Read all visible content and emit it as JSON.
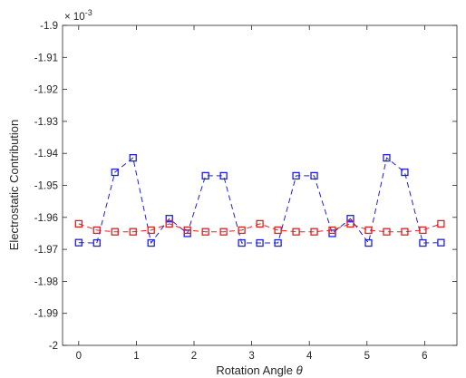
{
  "chart_data": {
    "type": "line",
    "title": "",
    "xlabel": "Rotation Angle",
    "xlabel_symbol": "θ",
    "ylabel": "Electrostatic Contribution",
    "y_exponent_base": "× 10",
    "y_exponent_power": "-3",
    "xlim": [
      -0.28,
      6.56
    ],
    "ylim": [
      -2.0,
      -1.9
    ],
    "x_ticks": [
      0,
      1,
      2,
      3,
      4,
      5,
      6
    ],
    "x_tick_labels": [
      "0",
      "1",
      "2",
      "3",
      "4",
      "5",
      "6"
    ],
    "y_ticks": [
      -1.9,
      -1.91,
      -1.92,
      -1.93,
      -1.94,
      -1.95,
      -1.96,
      -1.97,
      -1.98,
      -1.99,
      -2.0
    ],
    "y_tick_labels": [
      "-1.9",
      "-1.91",
      "-1.92",
      "-1.93",
      "-1.94",
      "-1.95",
      "-1.96",
      "-1.97",
      "-1.98",
      "-1.99",
      "-2"
    ],
    "grid": false,
    "legend": "none",
    "x": [
      0,
      0.3142,
      0.6283,
      0.9425,
      1.2566,
      1.5708,
      1.885,
      2.1991,
      2.5133,
      2.8274,
      3.1416,
      3.4558,
      3.7699,
      4.0841,
      4.3982,
      4.7124,
      5.0265,
      5.3407,
      5.6549,
      5.969,
      6.2832
    ],
    "series": [
      {
        "color": "#1f1fe0",
        "marker": "square",
        "line": "dashed",
        "values": [
          -1.9679,
          -1.968,
          -1.9459,
          -1.9414,
          -1.968,
          -1.9604,
          -1.965,
          -1.947,
          -1.947,
          -1.968,
          -1.968,
          -1.968,
          -1.947,
          -1.947,
          -1.965,
          -1.9604,
          -1.968,
          -1.9414,
          -1.9459,
          -1.968,
          -1.9679
        ]
      },
      {
        "color": "#e01f1f",
        "marker": "square",
        "line": "dashed",
        "values": [
          -1.962,
          -1.964,
          -1.9645,
          -1.9645,
          -1.964,
          -1.962,
          -1.964,
          -1.9645,
          -1.9645,
          -1.964,
          -1.962,
          -1.964,
          -1.9645,
          -1.9645,
          -1.964,
          -1.962,
          -1.964,
          -1.9645,
          -1.9645,
          -1.964,
          -1.962
        ]
      }
    ]
  }
}
